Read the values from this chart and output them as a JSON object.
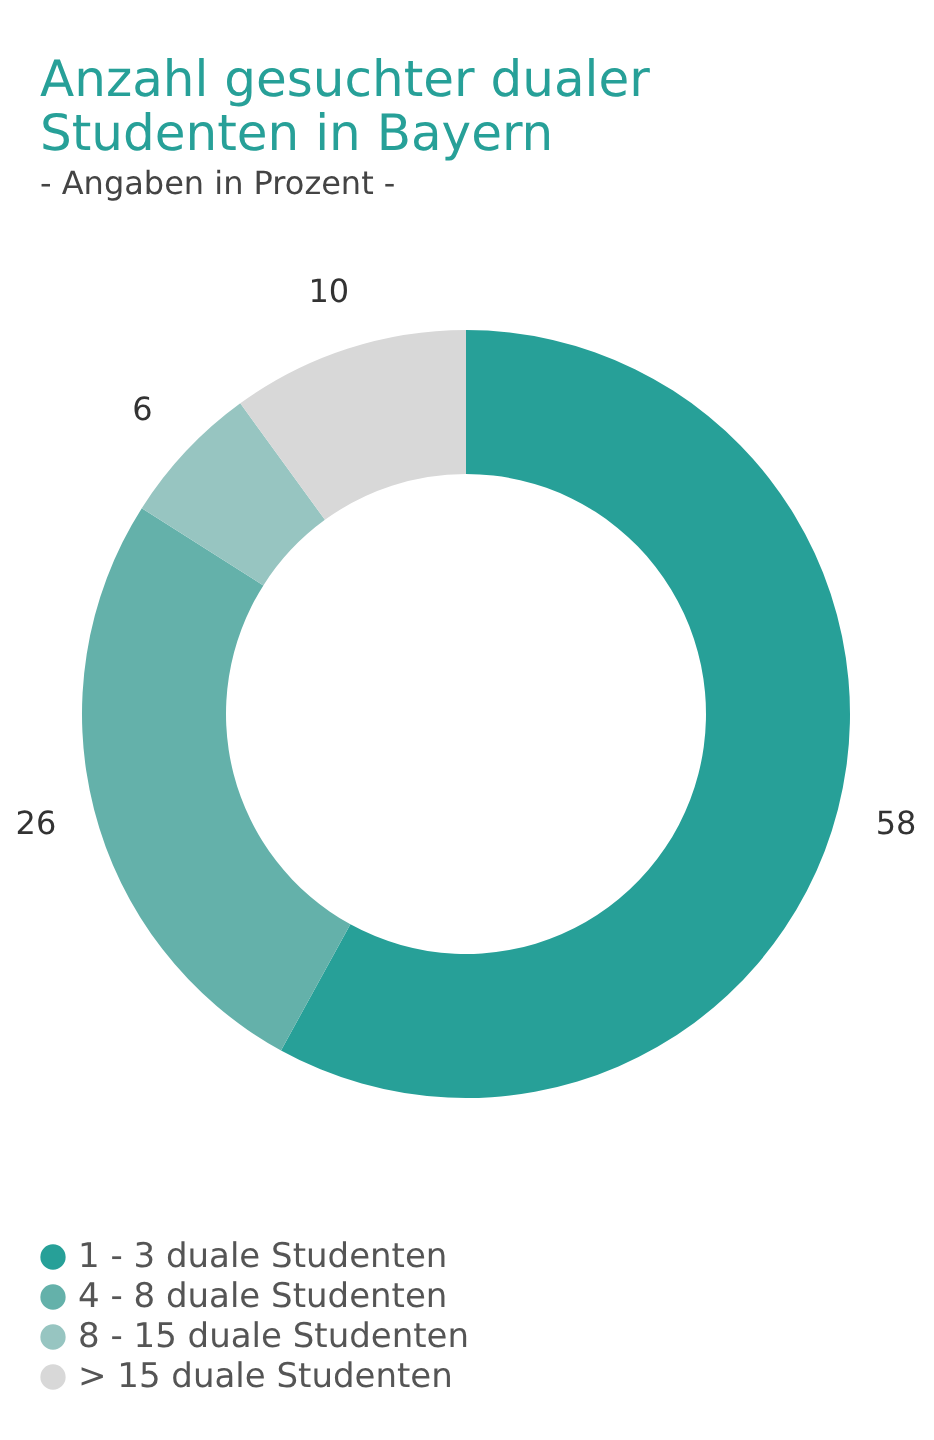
{
  "chart_data": {
    "type": "donut",
    "title": [
      "Anzahl gesuchter dualer",
      "Studenten in Bayern"
    ],
    "subtitle": "- Angaben in Prozent -",
    "categories": [
      "1 - 3 duale Studenten",
      "4 - 8 duale Studenten",
      "8 - 15 duale Studenten",
      "> 15 duale Studenten"
    ],
    "values": [
      58,
      26,
      6,
      10
    ],
    "colors": [
      "#27a098",
      "#64b1aa",
      "#97c5c1",
      "#d8d8d8"
    ],
    "data_labels": true,
    "legend": "bottom left"
  }
}
